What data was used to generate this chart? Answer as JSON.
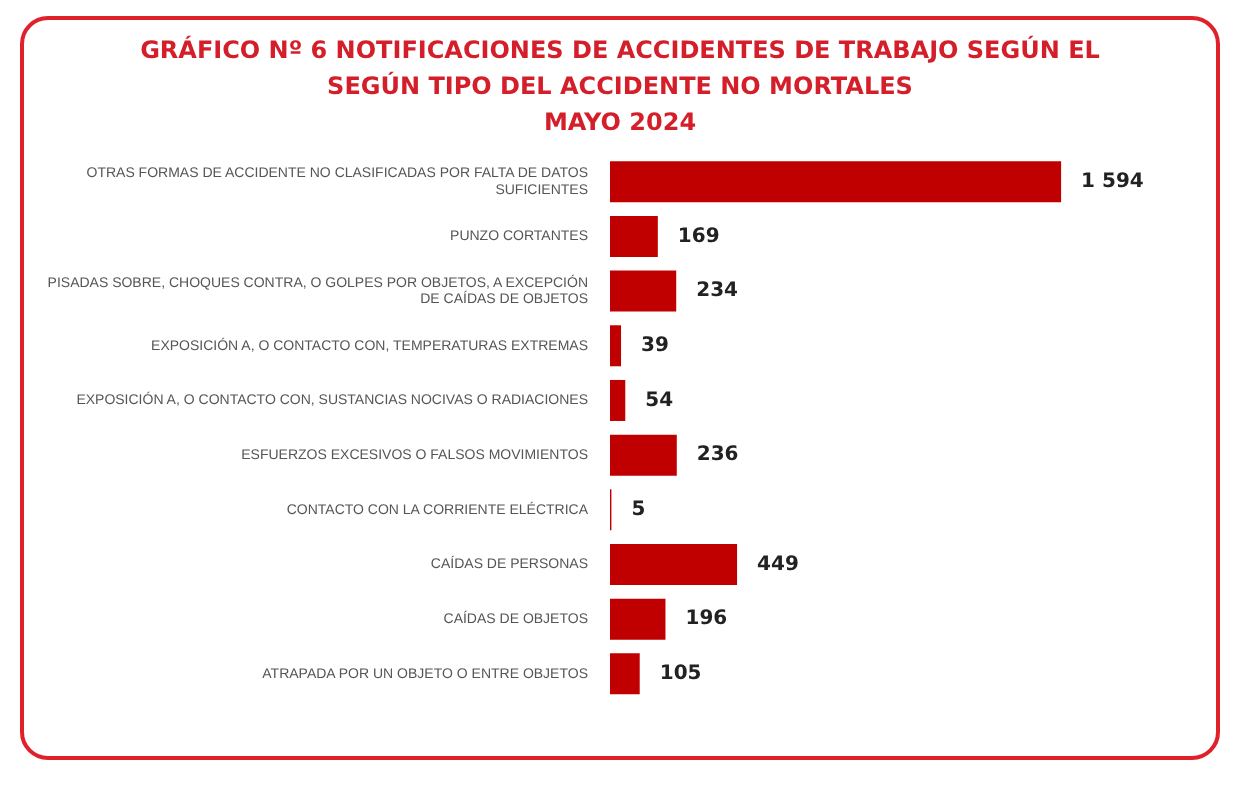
{
  "chart_data": {
    "type": "bar",
    "orientation": "horizontal",
    "title": "GRÁFICO Nº 6 NOTIFICACIONES DE ACCIDENTES DE TRABAJO SEGÚN EL SEGÚN TIPO DEL ACCIDENTE NO MORTALES",
    "subtitle": "MAYO  2024",
    "categories": [
      "OTRAS FORMAS DE ACCIDENTE NO CLASIFICADAS POR FALTA DE DATOS SUFICIENTES",
      "PUNZO CORTANTES",
      "PISADAS SOBRE, CHOQUES CONTRA, O GOLPES POR OBJETOS, A EXCEPCIÓN DE CAÍDAS DE OBJETOS",
      "EXPOSICIÓN A, O CONTACTO CON, TEMPERATURAS EXTREMAS",
      "EXPOSICIÓN A, O CONTACTO CON, SUSTANCIAS NOCIVAS O RADIACIONES",
      "ESFUERZOS EXCESIVOS O FALSOS MOVIMIENTOS",
      "CONTACTO CON LA CORRIENTE ELÉCTRICA",
      "CAÍDAS DE PERSONAS",
      "CAÍDAS DE OBJETOS",
      "ATRAPADA POR UN OBJETO O ENTRE OBJETOS"
    ],
    "values": [
      1594,
      169,
      234,
      39,
      54,
      236,
      5,
      449,
      196,
      105
    ],
    "value_labels": [
      "1 594",
      "169",
      "234",
      "39",
      "54",
      "236",
      "5",
      "449",
      "196",
      "105"
    ],
    "color": "#c00000",
    "legend": false,
    "tick_labels": "y"
  }
}
